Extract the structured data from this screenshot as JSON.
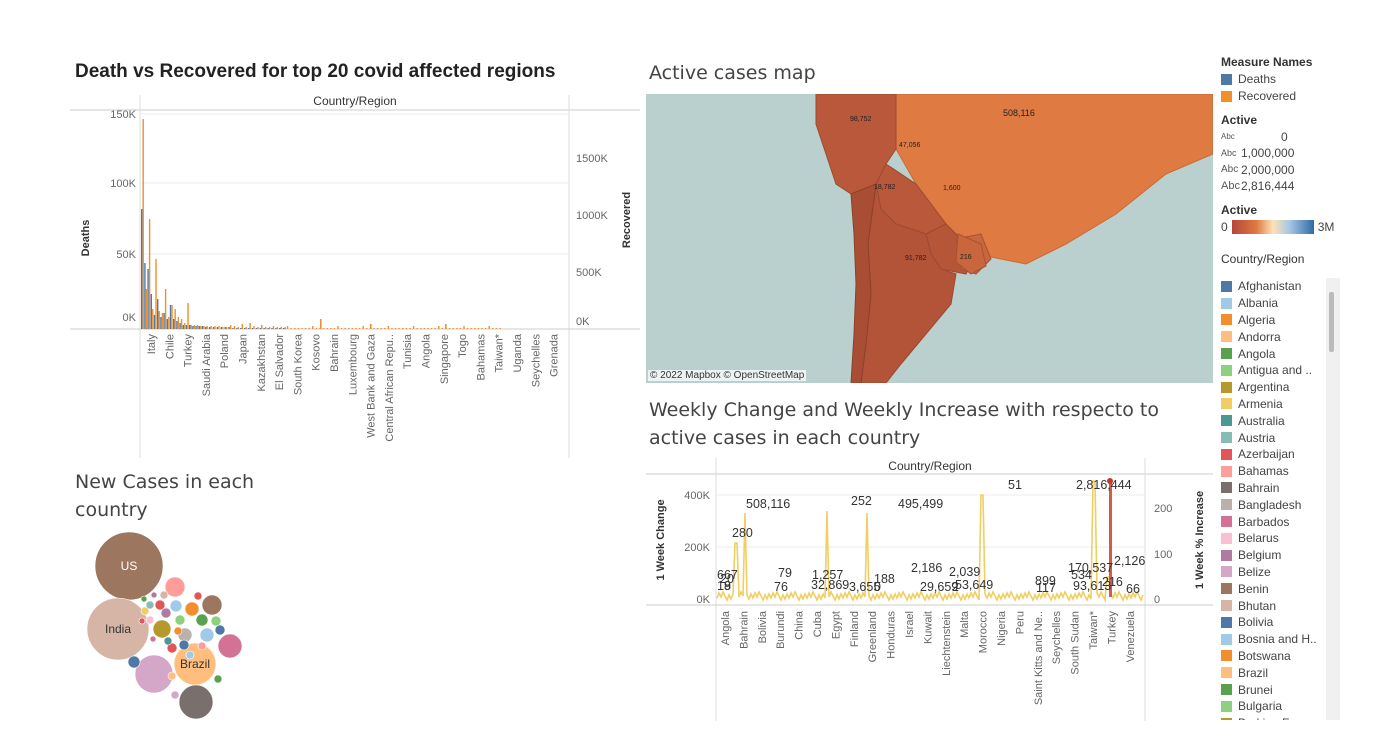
{
  "death_chart": {
    "title": "Death vs Recovered for top 20 covid affected regions",
    "header": "Country/Region",
    "ylabel_left": "Deaths",
    "ylabel_right": "Recovered",
    "left_ticks": [
      "150K",
      "100K",
      "50K",
      "0K"
    ],
    "right_ticks": [
      "1500K",
      "1000K",
      "500K",
      "0K"
    ],
    "country_labels": [
      "Italy",
      "Chile",
      "Turkey",
      "Saudi Arabia",
      "Poland",
      "Japan",
      "Kazakhstan",
      "El Salvador",
      "South Korea",
      "Kosovo",
      "Bahrain",
      "Luxembourg",
      "West Bank and Gaza",
      "Central African Repu..",
      "Tunisia",
      "Angola",
      "Singapore",
      "Togo",
      "Bahamas",
      "Taiwan*",
      "Uganda",
      "Seychelles",
      "Grenada"
    ],
    "colors": {
      "deaths": "#4e79a7",
      "recovered": "#f28e2b"
    }
  },
  "map": {
    "title": "Active cases map",
    "attribution": "© 2022 Mapbox © OpenStreetMap",
    "labels": [
      "508,116",
      "98,752",
      "47,056",
      "18,782",
      "1,600",
      "91,782",
      "216"
    ]
  },
  "weekly_chart": {
    "title": "Weekly Change and Weekly Increase with respecto to active cases in each country",
    "header": "Country/Region",
    "ylabel_left": "1 Week Change",
    "ylabel_right": "1 Week % Increase",
    "left_ticks": [
      "400K",
      "200K",
      "0K"
    ],
    "right_ticks": [
      "200",
      "100",
      "0"
    ],
    "point_labels": [
      "667",
      "18",
      "280",
      "20",
      "9",
      "508,116",
      "79",
      "76",
      "1,257",
      "32,869",
      "252",
      "3,655",
      "0",
      "188",
      "495,499",
      "2,186",
      "29,659",
      "2,039",
      "2",
      "53,649",
      "51",
      "899",
      "117",
      "170,537",
      "534",
      "93,613",
      "216",
      "2,816,444",
      "2,126",
      "66"
    ],
    "country_labels": [
      "Angola",
      "Bahrain",
      "Bolivia",
      "Burundi",
      "China",
      "Cuba",
      "Egypt",
      "Finland",
      "Greenland",
      "Honduras",
      "Israel",
      "Kuwait",
      "Liechtenstein",
      "Malta",
      "Morocco",
      "Nigeria",
      "Peru",
      "Saint Kitts and Ne..",
      "Seychelles",
      "South Sudan",
      "Taiwan*",
      "Turkey",
      "Venezuela"
    ]
  },
  "bubble_chart": {
    "title": "New Cases in each country",
    "labels": [
      "US",
      "India",
      "Brazil"
    ]
  },
  "legends": {
    "measure_title": "Measure Names",
    "measures": [
      {
        "label": "Deaths",
        "color": "#4e79a7"
      },
      {
        "label": "Recovered",
        "color": "#f28e2b"
      }
    ],
    "active_size_title": "Active",
    "active_sizes": [
      "0",
      "1,000,000",
      "2,000,000",
      "2,816,444"
    ],
    "abc": "Abc",
    "active_color_title": "Active",
    "active_color_min": "0",
    "active_color_max": "3M",
    "country_title": "Country/Region",
    "countries": [
      {
        "label": "Afghanistan",
        "color": "#4e79a7"
      },
      {
        "label": "Albania",
        "color": "#a0cbe8"
      },
      {
        "label": "Algeria",
        "color": "#f28e2b"
      },
      {
        "label": "Andorra",
        "color": "#ffbe7d"
      },
      {
        "label": "Angola",
        "color": "#59a14f"
      },
      {
        "label": "Antigua and ..",
        "color": "#8cd17d"
      },
      {
        "label": "Argentina",
        "color": "#b6992d"
      },
      {
        "label": "Armenia",
        "color": "#f1ce63"
      },
      {
        "label": "Australia",
        "color": "#499894"
      },
      {
        "label": "Austria",
        "color": "#86bcb6"
      },
      {
        "label": "Azerbaijan",
        "color": "#e15759"
      },
      {
        "label": "Bahamas",
        "color": "#ff9d9a"
      },
      {
        "label": "Bahrain",
        "color": "#79706e"
      },
      {
        "label": "Bangladesh",
        "color": "#bab0ac"
      },
      {
        "label": "Barbados",
        "color": "#d37295"
      },
      {
        "label": "Belarus",
        "color": "#fabfd2"
      },
      {
        "label": "Belgium",
        "color": "#b07aa1"
      },
      {
        "label": "Belize",
        "color": "#d4a6c8"
      },
      {
        "label": "Benin",
        "color": "#9d7660"
      },
      {
        "label": "Bhutan",
        "color": "#d7b5a6"
      },
      {
        "label": "Bolivia",
        "color": "#4e79a7"
      },
      {
        "label": "Bosnia and H..",
        "color": "#a0cbe8"
      },
      {
        "label": "Botswana",
        "color": "#f28e2b"
      },
      {
        "label": "Brazil",
        "color": "#ffbe7d"
      },
      {
        "label": "Brunei",
        "color": "#59a14f"
      },
      {
        "label": "Bulgaria",
        "color": "#8cd17d"
      },
      {
        "label": "Burkina Faso",
        "color": "#b6992d"
      }
    ]
  }
}
